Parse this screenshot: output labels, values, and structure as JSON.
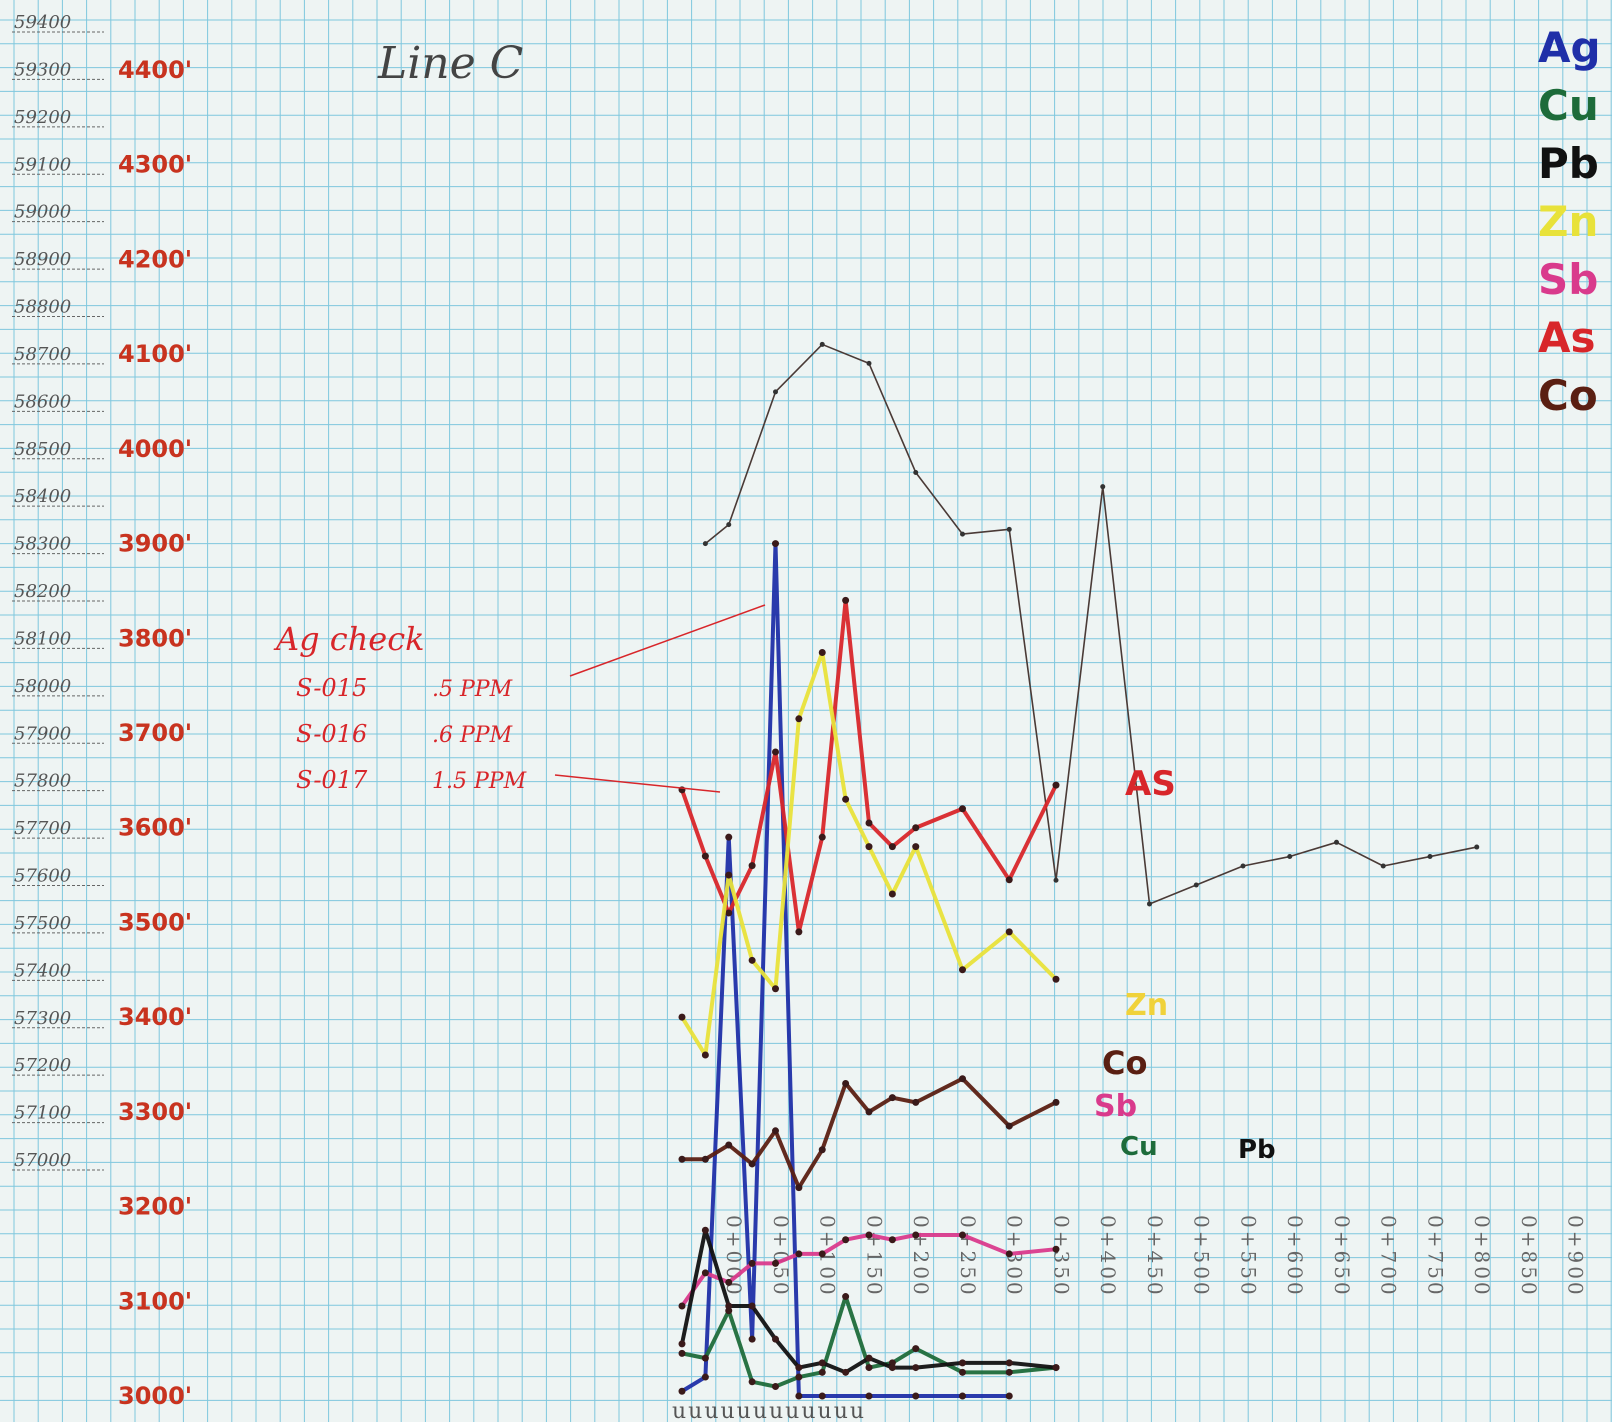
{
  "chart_data": {
    "type": "line",
    "title": "Line C",
    "xlabel": "",
    "ylabel": "",
    "x": [
      "0+000",
      "0+050",
      "0+100",
      "0+150",
      "0+200",
      "0+250",
      "0+300",
      "0+350",
      "0+400",
      "0+450",
      "0+500",
      "0+550",
      "0+600",
      "0+650",
      "0+700",
      "0+750",
      "0+800",
      "0+850",
      "0+900"
    ],
    "northing_axis": {
      "ticks": [
        "59400",
        "59300",
        "59200",
        "59100",
        "59000",
        "58900",
        "58800",
        "58700",
        "58600",
        "58500",
        "58400",
        "58300",
        "58200",
        "58100",
        "58000",
        "57900",
        "57800",
        "57700",
        "57600",
        "57500",
        "57400",
        "57300",
        "57200",
        "57100",
        "57000"
      ],
      "range": [
        57000,
        59400
      ]
    },
    "elevation_axis": {
      "ticks": [
        "4400'",
        "4300'",
        "4200'",
        "4100'",
        "4000'",
        "3900'",
        "3800'",
        "3700'",
        "3600'",
        "3500'",
        "3400'",
        "3300'",
        "3200'",
        "3100'",
        "3000'"
      ],
      "range": [
        3000,
        4400
      ]
    },
    "legend": {
      "placement": "top-right",
      "entries": [
        {
          "label": "Ag",
          "color": "#1f2fa8"
        },
        {
          "label": "Cu",
          "color": "#1d6b3a"
        },
        {
          "label": "Pb",
          "color": "#111111"
        },
        {
          "label": "Zn",
          "color": "#e8e23a"
        },
        {
          "label": "Sb",
          "color": "#d93a8c"
        },
        {
          "label": "As",
          "color": "#d8262a"
        },
        {
          "label": "Co",
          "color": "#5a1f12"
        }
      ]
    },
    "series": [
      {
        "key": "profile",
        "color": "#4a3a36",
        "points": [
          [
            25,
            58300
          ],
          [
            50,
            58340
          ],
          [
            100,
            58620
          ],
          [
            150,
            58720
          ],
          [
            200,
            58680
          ],
          [
            250,
            58450
          ],
          [
            300,
            58320
          ],
          [
            350,
            58330
          ],
          [
            400,
            57590
          ],
          [
            450,
            58420
          ],
          [
            500,
            57540
          ],
          [
            550,
            57580
          ],
          [
            600,
            57620
          ],
          [
            650,
            57640
          ],
          [
            700,
            57670
          ],
          [
            750,
            57620
          ],
          [
            800,
            57640
          ],
          [
            850,
            57660
          ]
        ]
      },
      {
        "key": "Ag",
        "color": "#1f2fa8",
        "points": [
          [
            0,
            3005
          ],
          [
            25,
            3020
          ],
          [
            50,
            3590
          ],
          [
            75,
            3060
          ],
          [
            100,
            3900
          ],
          [
            125,
            3000
          ],
          [
            150,
            3000
          ],
          [
            200,
            3000
          ],
          [
            250,
            3000
          ],
          [
            300,
            3000
          ],
          [
            350,
            3000
          ]
        ]
      },
      {
        "key": "As",
        "color": "#d8262a",
        "points": [
          [
            0,
            3640
          ],
          [
            25,
            3570
          ],
          [
            50,
            3510
          ],
          [
            75,
            3560
          ],
          [
            100,
            3680
          ],
          [
            125,
            3490
          ],
          [
            150,
            3590
          ],
          [
            175,
            3840
          ],
          [
            200,
            3605
          ],
          [
            225,
            3580
          ],
          [
            250,
            3600
          ],
          [
            300,
            3620
          ],
          [
            350,
            3545
          ],
          [
            400,
            3645
          ]
        ]
      },
      {
        "key": "Zn",
        "color": "#e8e23a",
        "points": [
          [
            0,
            3400
          ],
          [
            25,
            3360
          ],
          [
            50,
            3550
          ],
          [
            75,
            3460
          ],
          [
            100,
            3430
          ],
          [
            125,
            3715
          ],
          [
            150,
            3785
          ],
          [
            175,
            3630
          ],
          [
            200,
            3580
          ],
          [
            225,
            3530
          ],
          [
            250,
            3580
          ],
          [
            300,
            3450
          ],
          [
            350,
            3490
          ],
          [
            400,
            3440
          ]
        ]
      },
      {
        "key": "Co",
        "color": "#5a1f12",
        "points": [
          [
            0,
            3250
          ],
          [
            25,
            3250
          ],
          [
            50,
            3265
          ],
          [
            75,
            3245
          ],
          [
            100,
            3280
          ],
          [
            125,
            3220
          ],
          [
            150,
            3260
          ],
          [
            175,
            3330
          ],
          [
            200,
            3300
          ],
          [
            225,
            3315
          ],
          [
            250,
            3310
          ],
          [
            300,
            3335
          ],
          [
            350,
            3285
          ],
          [
            400,
            3310
          ]
        ]
      },
      {
        "key": "Sb",
        "color": "#d93a8c",
        "points": [
          [
            0,
            3095
          ],
          [
            25,
            3130
          ],
          [
            50,
            3120
          ],
          [
            75,
            3140
          ],
          [
            100,
            3140
          ],
          [
            125,
            3150
          ],
          [
            150,
            3150
          ],
          [
            175,
            3165
          ],
          [
            200,
            3170
          ],
          [
            225,
            3165
          ],
          [
            250,
            3170
          ],
          [
            300,
            3170
          ],
          [
            350,
            3150
          ],
          [
            400,
            3155
          ]
        ]
      },
      {
        "key": "Cu",
        "color": "#1d6b3a",
        "points": [
          [
            0,
            3045
          ],
          [
            25,
            3040
          ],
          [
            50,
            3090
          ],
          [
            75,
            3015
          ],
          [
            100,
            3010
          ],
          [
            125,
            3020
          ],
          [
            150,
            3025
          ],
          [
            175,
            3105
          ],
          [
            200,
            3030
          ],
          [
            225,
            3035
          ],
          [
            250,
            3050
          ],
          [
            300,
            3025
          ],
          [
            350,
            3025
          ],
          [
            400,
            3030
          ]
        ]
      },
      {
        "key": "Pb",
        "color": "#111111",
        "points": [
          [
            0,
            3055
          ],
          [
            25,
            3175
          ],
          [
            50,
            3095
          ],
          [
            75,
            3095
          ],
          [
            100,
            3060
          ],
          [
            125,
            3030
          ],
          [
            150,
            3035
          ],
          [
            175,
            3025
          ],
          [
            200,
            3040
          ],
          [
            225,
            3030
          ],
          [
            250,
            3030
          ],
          [
            300,
            3035
          ],
          [
            350,
            3035
          ],
          [
            400,
            3030
          ]
        ]
      }
    ],
    "end_labels": [
      {
        "text": "AS",
        "color": "#d8262a"
      },
      {
        "text": "Zn",
        "color": "#f0d23a"
      },
      {
        "text": "Co",
        "color": "#5a1f12"
      },
      {
        "text": "Sb",
        "color": "#d93a8c"
      },
      {
        "text": "Cu",
        "color": "#1d6b3a"
      },
      {
        "text": "Pb",
        "color": "#111111"
      }
    ],
    "annotation": {
      "heading": "Ag check",
      "rows": [
        {
          "sample": "S-015",
          "value": ".5 PPM"
        },
        {
          "sample": "S-016",
          "value": ".6 PPM"
        },
        {
          "sample": "S-017",
          "value": "1.5 PPM"
        }
      ],
      "color": "#d8262a"
    },
    "footer_marks": "uuuuuuuuuuuu",
    "grid": true
  }
}
